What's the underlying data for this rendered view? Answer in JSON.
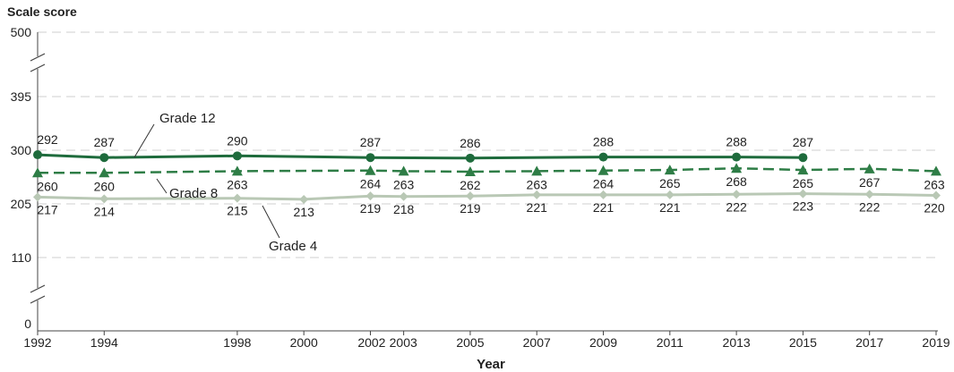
{
  "chart_data": {
    "type": "line",
    "ylabel": "Scale score",
    "xlabel": "Year",
    "x": [
      1992,
      1994,
      1998,
      2000,
      2002,
      2003,
      2005,
      2007,
      2009,
      2011,
      2013,
      2015,
      2017,
      2019
    ],
    "x_ticks": [
      "1992",
      "1994",
      "1998",
      "2000",
      "2002",
      "2003",
      "2005",
      "2007",
      "2009",
      "2011",
      "2013",
      "2015",
      "2017",
      "2019"
    ],
    "y_ticks": [
      "0",
      "110",
      "205",
      "300",
      "395",
      "500"
    ],
    "axis_breaks": [
      "0-110",
      "395-500"
    ],
    "grid": "dashed horizontal",
    "series": [
      {
        "name": "Grade 12",
        "color": "#1e6b3c",
        "line": "solid",
        "marker": "circle",
        "points": [
          {
            "x": 1992,
            "y": 292
          },
          {
            "x": 1994,
            "y": 287
          },
          {
            "x": 1998,
            "y": 290
          },
          {
            "x": 2002,
            "y": 287
          },
          {
            "x": 2005,
            "y": 286
          },
          {
            "x": 2009,
            "y": 288
          },
          {
            "x": 2013,
            "y": 288
          },
          {
            "x": 2015,
            "y": 287
          }
        ]
      },
      {
        "name": "Grade 8",
        "color": "#2e7d46",
        "line": "dashed",
        "marker": "triangle",
        "points": [
          {
            "x": 1992,
            "y": 260
          },
          {
            "x": 1994,
            "y": 260
          },
          {
            "x": 1998,
            "y": 263
          },
          {
            "x": 2002,
            "y": 264
          },
          {
            "x": 2003,
            "y": 263
          },
          {
            "x": 2005,
            "y": 262
          },
          {
            "x": 2007,
            "y": 263
          },
          {
            "x": 2009,
            "y": 264
          },
          {
            "x": 2011,
            "y": 265
          },
          {
            "x": 2013,
            "y": 268
          },
          {
            "x": 2015,
            "y": 265
          },
          {
            "x": 2017,
            "y": 267
          },
          {
            "x": 2019,
            "y": 263
          }
        ]
      },
      {
        "name": "Grade 4",
        "color": "#b9c8b5",
        "line": "solid",
        "marker": "diamond",
        "points": [
          {
            "x": 1992,
            "y": 217
          },
          {
            "x": 1994,
            "y": 214
          },
          {
            "x": 1998,
            "y": 215
          },
          {
            "x": 2000,
            "y": 213
          },
          {
            "x": 2002,
            "y": 219
          },
          {
            "x": 2003,
            "y": 218
          },
          {
            "x": 2005,
            "y": 219
          },
          {
            "x": 2007,
            "y": 221
          },
          {
            "x": 2009,
            "y": 221
          },
          {
            "x": 2011,
            "y": 221
          },
          {
            "x": 2013,
            "y": 222
          },
          {
            "x": 2015,
            "y": 223
          },
          {
            "x": 2017,
            "y": 222
          },
          {
            "x": 2019,
            "y": 220
          }
        ]
      }
    ]
  }
}
